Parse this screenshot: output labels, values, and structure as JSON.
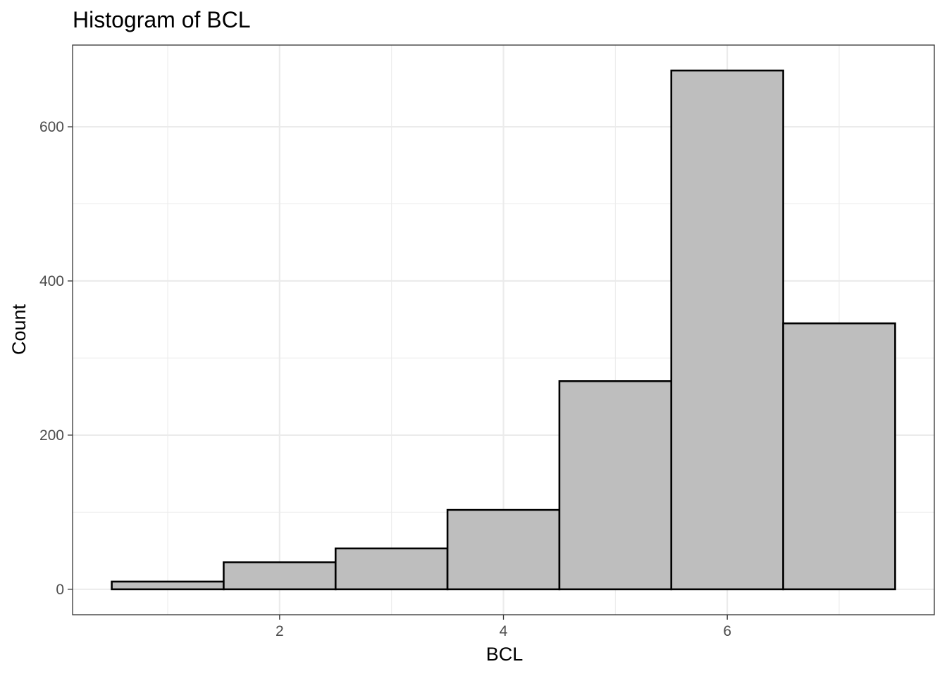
{
  "chart_data": {
    "type": "bar",
    "title": "Histogram of BCL",
    "xlabel": "BCL",
    "ylabel": "Count",
    "bins": [
      {
        "x_start": 0.5,
        "x_end": 1.5,
        "count": 10
      },
      {
        "x_start": 1.5,
        "x_end": 2.5,
        "count": 35
      },
      {
        "x_start": 2.5,
        "x_end": 3.5,
        "count": 53
      },
      {
        "x_start": 3.5,
        "x_end": 4.5,
        "count": 103
      },
      {
        "x_start": 4.5,
        "x_end": 5.5,
        "count": 270
      },
      {
        "x_start": 5.5,
        "x_end": 6.5,
        "count": 673
      },
      {
        "x_start": 6.5,
        "x_end": 7.5,
        "count": 345
      }
    ],
    "xlim": [
      0.15,
      7.85
    ],
    "ylim": [
      -33,
      706
    ],
    "x_ticks": [
      2,
      4,
      6
    ],
    "x_minor_ticks": [
      1,
      3,
      5,
      7
    ],
    "y_ticks": [
      0,
      200,
      400,
      600
    ],
    "y_minor_ticks": [
      100,
      300,
      500
    ],
    "grid": true,
    "legend": "none",
    "colors": {
      "bar_fill": "#bebebe",
      "bar_outline": "#000000",
      "grid": "#ebebeb",
      "panel_border": "#333333",
      "tick_label": "#4d4d4d"
    }
  }
}
